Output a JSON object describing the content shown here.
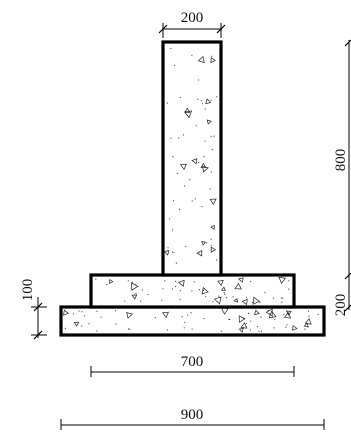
{
  "drawing": {
    "dimensions": {
      "stem_width": "200",
      "stem_height": "800",
      "upper_step_height": "200",
      "lower_step_height": "100",
      "upper_step_width": "700",
      "base_width": "900"
    }
  }
}
